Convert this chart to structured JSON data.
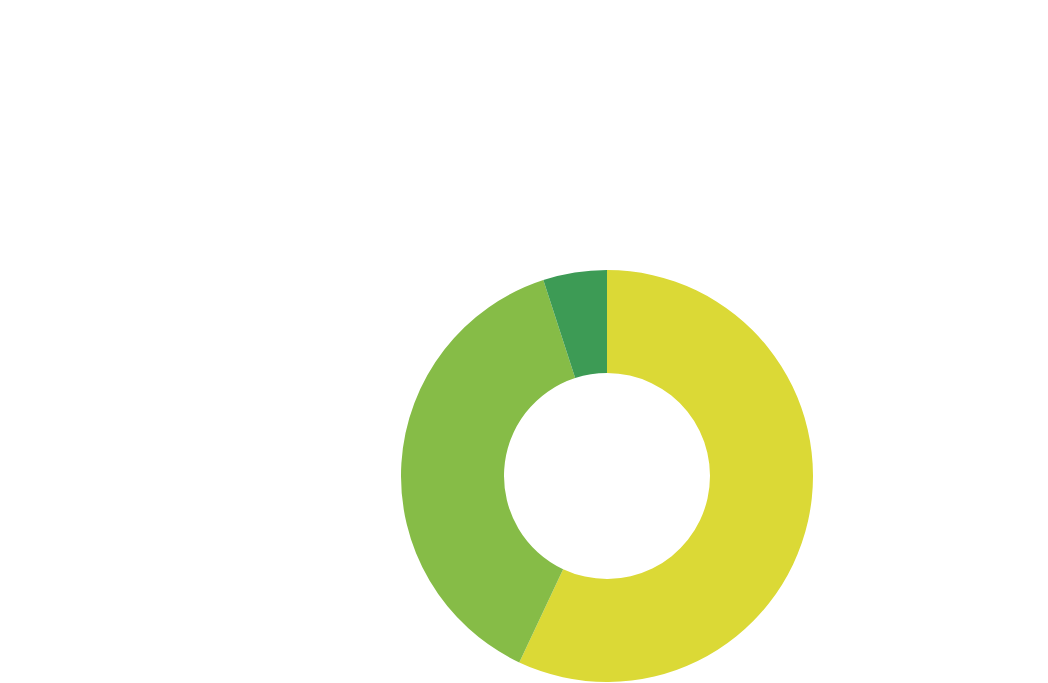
{
  "chart_data": {
    "type": "donut",
    "categories": [
      null,
      null,
      null
    ],
    "values": [
      57,
      38,
      5
    ],
    "colors": [
      "#dbd936",
      "#86bc47",
      "#3d9b55"
    ]
  }
}
